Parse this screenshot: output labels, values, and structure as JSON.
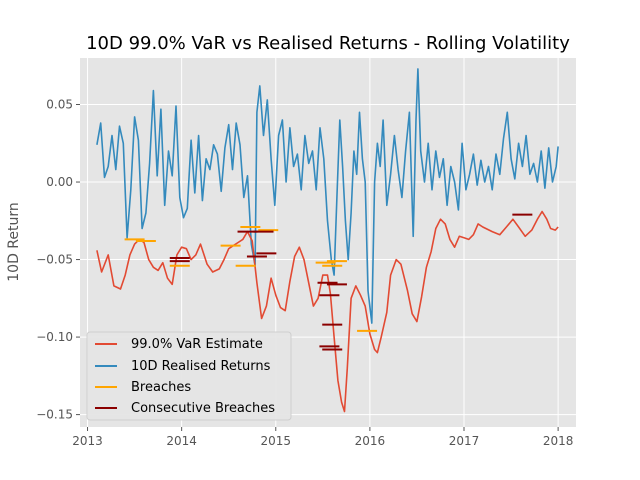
{
  "chart_data": {
    "type": "line",
    "title": "10D 99.0% VaR vs Realised Returns - Rolling Volatility",
    "xlabel": "",
    "ylabel": "10D Return",
    "xlim": [
      2012.92,
      2018.19
    ],
    "ylim": [
      -0.158,
      0.08
    ],
    "x_ticks": [
      2013,
      2014,
      2015,
      2016,
      2017,
      2018
    ],
    "x_tick_labels": [
      "2013",
      "2014",
      "2015",
      "2016",
      "2017",
      "2018"
    ],
    "y_ticks": [
      0.05,
      0.0,
      -0.05,
      -0.1,
      -0.15
    ],
    "y_tick_labels": [
      "0.05",
      "0.00",
      "−0.05",
      "−0.10",
      "−0.15"
    ],
    "grid": true,
    "legend_position": "lower-left",
    "colors": {
      "background": "#e5e5e5",
      "grid": "#ffffff",
      "var": "#e24a33",
      "returns": "#348abd",
      "breaches": "#ffa500",
      "consecutive": "#8b0000"
    },
    "series": [
      {
        "name": "99.0% VaR Estimate",
        "color": "#e24a33",
        "points": [
          [
            2013.1,
            -0.044
          ],
          [
            2013.15,
            -0.058
          ],
          [
            2013.22,
            -0.047
          ],
          [
            2013.28,
            -0.067
          ],
          [
            2013.35,
            -0.069
          ],
          [
            2013.4,
            -0.06
          ],
          [
            2013.45,
            -0.047
          ],
          [
            2013.5,
            -0.04
          ],
          [
            2013.55,
            -0.037
          ],
          [
            2013.6,
            -0.039
          ],
          [
            2013.65,
            -0.05
          ],
          [
            2013.7,
            -0.055
          ],
          [
            2013.75,
            -0.057
          ],
          [
            2013.8,
            -0.052
          ],
          [
            2013.85,
            -0.062
          ],
          [
            2013.9,
            -0.066
          ],
          [
            2013.95,
            -0.047
          ],
          [
            2014.0,
            -0.042
          ],
          [
            2014.05,
            -0.043
          ],
          [
            2014.1,
            -0.05
          ],
          [
            2014.15,
            -0.047
          ],
          [
            2014.2,
            -0.04
          ],
          [
            2014.27,
            -0.053
          ],
          [
            2014.33,
            -0.058
          ],
          [
            2014.4,
            -0.056
          ],
          [
            2014.45,
            -0.05
          ],
          [
            2014.5,
            -0.043
          ],
          [
            2014.55,
            -0.041
          ],
          [
            2014.6,
            -0.039
          ],
          [
            2014.65,
            -0.037
          ],
          [
            2014.7,
            -0.032
          ],
          [
            2014.75,
            -0.038
          ],
          [
            2014.8,
            -0.065
          ],
          [
            2014.85,
            -0.088
          ],
          [
            2014.9,
            -0.08
          ],
          [
            2014.95,
            -0.062
          ],
          [
            2015.0,
            -0.073
          ],
          [
            2015.05,
            -0.081
          ],
          [
            2015.1,
            -0.083
          ],
          [
            2015.15,
            -0.064
          ],
          [
            2015.2,
            -0.048
          ],
          [
            2015.25,
            -0.042
          ],
          [
            2015.3,
            -0.05
          ],
          [
            2015.35,
            -0.065
          ],
          [
            2015.4,
            -0.08
          ],
          [
            2015.45,
            -0.075
          ],
          [
            2015.5,
            -0.06
          ],
          [
            2015.55,
            -0.06
          ],
          [
            2015.58,
            -0.072
          ],
          [
            2015.62,
            -0.1
          ],
          [
            2015.66,
            -0.128
          ],
          [
            2015.7,
            -0.142
          ],
          [
            2015.73,
            -0.148
          ],
          [
            2015.76,
            -0.12
          ],
          [
            2015.8,
            -0.075
          ],
          [
            2015.85,
            -0.067
          ],
          [
            2015.9,
            -0.073
          ],
          [
            2015.95,
            -0.08
          ],
          [
            2016.0,
            -0.098
          ],
          [
            2016.05,
            -0.108
          ],
          [
            2016.08,
            -0.11
          ],
          [
            2016.12,
            -0.1
          ],
          [
            2016.18,
            -0.084
          ],
          [
            2016.22,
            -0.06
          ],
          [
            2016.28,
            -0.05
          ],
          [
            2016.33,
            -0.053
          ],
          [
            2016.4,
            -0.07
          ],
          [
            2016.45,
            -0.085
          ],
          [
            2016.5,
            -0.09
          ],
          [
            2016.55,
            -0.074
          ],
          [
            2016.6,
            -0.055
          ],
          [
            2016.65,
            -0.045
          ],
          [
            2016.7,
            -0.03
          ],
          [
            2016.75,
            -0.024
          ],
          [
            2016.8,
            -0.027
          ],
          [
            2016.85,
            -0.037
          ],
          [
            2016.9,
            -0.042
          ],
          [
            2016.95,
            -0.035
          ],
          [
            2017.0,
            -0.036
          ],
          [
            2017.05,
            -0.037
          ],
          [
            2017.1,
            -0.034
          ],
          [
            2017.15,
            -0.027
          ],
          [
            2017.2,
            -0.029
          ],
          [
            2017.3,
            -0.032
          ],
          [
            2017.38,
            -0.034
          ],
          [
            2017.45,
            -0.029
          ],
          [
            2017.52,
            -0.024
          ],
          [
            2017.58,
            -0.029
          ],
          [
            2017.65,
            -0.035
          ],
          [
            2017.72,
            -0.031
          ],
          [
            2017.78,
            -0.024
          ],
          [
            2017.83,
            -0.019
          ],
          [
            2017.88,
            -0.024
          ],
          [
            2017.92,
            -0.03
          ],
          [
            2017.97,
            -0.031
          ],
          [
            2018.0,
            -0.029
          ]
        ]
      },
      {
        "name": "10D Realised Returns",
        "color": "#348abd",
        "points": [
          [
            2013.1,
            0.024
          ],
          [
            2013.14,
            0.038
          ],
          [
            2013.18,
            0.003
          ],
          [
            2013.22,
            0.01
          ],
          [
            2013.26,
            0.03
          ],
          [
            2013.3,
            0.008
          ],
          [
            2013.34,
            0.036
          ],
          [
            2013.38,
            0.025
          ],
          [
            2013.42,
            -0.036
          ],
          [
            2013.46,
            -0.005
          ],
          [
            2013.5,
            0.042
          ],
          [
            2013.54,
            0.027
          ],
          [
            2013.58,
            -0.03
          ],
          [
            2013.62,
            -0.02
          ],
          [
            2013.66,
            0.012
          ],
          [
            2013.7,
            0.059
          ],
          [
            2013.74,
            0.004
          ],
          [
            2013.78,
            0.047
          ],
          [
            2013.82,
            -0.015
          ],
          [
            2013.86,
            0.02
          ],
          [
            2013.9,
            0.004
          ],
          [
            2013.94,
            0.049
          ],
          [
            2013.98,
            -0.01
          ],
          [
            2014.02,
            -0.023
          ],
          [
            2014.06,
            -0.017
          ],
          [
            2014.1,
            0.027
          ],
          [
            2014.14,
            -0.007
          ],
          [
            2014.18,
            0.03
          ],
          [
            2014.22,
            -0.012
          ],
          [
            2014.26,
            0.015
          ],
          [
            2014.3,
            0.008
          ],
          [
            2014.34,
            0.024
          ],
          [
            2014.38,
            0.018
          ],
          [
            2014.42,
            -0.006
          ],
          [
            2014.46,
            0.022
          ],
          [
            2014.5,
            0.037
          ],
          [
            2014.54,
            0.008
          ],
          [
            2014.58,
            0.038
          ],
          [
            2014.62,
            0.024
          ],
          [
            2014.66,
            -0.01
          ],
          [
            2014.7,
            0.004
          ],
          [
            2014.74,
            -0.04
          ],
          [
            2014.78,
            -0.054
          ],
          [
            2014.8,
            0.045
          ],
          [
            2014.83,
            0.062
          ],
          [
            2014.87,
            0.03
          ],
          [
            2014.91,
            0.053
          ],
          [
            2014.95,
            0.015
          ],
          [
            2014.99,
            -0.015
          ],
          [
            2015.03,
            0.03
          ],
          [
            2015.07,
            0.04
          ],
          [
            2015.11,
            0.0
          ],
          [
            2015.15,
            0.035
          ],
          [
            2015.19,
            0.01
          ],
          [
            2015.23,
            0.018
          ],
          [
            2015.27,
            -0.005
          ],
          [
            2015.31,
            0.03
          ],
          [
            2015.35,
            0.012
          ],
          [
            2015.39,
            0.02
          ],
          [
            2015.43,
            -0.005
          ],
          [
            2015.47,
            0.035
          ],
          [
            2015.51,
            0.015
          ],
          [
            2015.55,
            -0.025
          ],
          [
            2015.59,
            -0.05
          ],
          [
            2015.62,
            -0.06
          ],
          [
            2015.65,
            -0.01
          ],
          [
            2015.68,
            0.04
          ],
          [
            2015.71,
            0.01
          ],
          [
            2015.74,
            -0.025
          ],
          [
            2015.77,
            -0.05
          ],
          [
            2015.8,
            -0.02
          ],
          [
            2015.83,
            0.02
          ],
          [
            2015.86,
            0.005
          ],
          [
            2015.89,
            0.045
          ],
          [
            2015.92,
            0.015
          ],
          [
            2015.95,
            0.0
          ],
          [
            2015.98,
            -0.07
          ],
          [
            2016.02,
            -0.091
          ],
          [
            2016.05,
            0.0
          ],
          [
            2016.08,
            0.025
          ],
          [
            2016.11,
            0.01
          ],
          [
            2016.14,
            0.04
          ],
          [
            2016.18,
            -0.015
          ],
          [
            2016.22,
            0.005
          ],
          [
            2016.26,
            0.03
          ],
          [
            2016.3,
            0.008
          ],
          [
            2016.34,
            -0.01
          ],
          [
            2016.38,
            0.02
          ],
          [
            2016.42,
            0.045
          ],
          [
            2016.46,
            -0.035
          ],
          [
            2016.49,
            0.04
          ],
          [
            2016.51,
            0.073
          ],
          [
            2016.54,
            0.02
          ],
          [
            2016.58,
            0.0
          ],
          [
            2016.62,
            0.025
          ],
          [
            2016.66,
            -0.005
          ],
          [
            2016.7,
            0.02
          ],
          [
            2016.74,
            0.003
          ],
          [
            2016.78,
            0.015
          ],
          [
            2016.82,
            -0.015
          ],
          [
            2016.86,
            0.01
          ],
          [
            2016.9,
            0.0
          ],
          [
            2016.94,
            -0.018
          ],
          [
            2016.98,
            0.025
          ],
          [
            2017.02,
            -0.005
          ],
          [
            2017.06,
            0.005
          ],
          [
            2017.1,
            0.018
          ],
          [
            2017.14,
            -0.002
          ],
          [
            2017.18,
            0.014
          ],
          [
            2017.22,
            0.0
          ],
          [
            2017.26,
            0.01
          ],
          [
            2017.3,
            -0.005
          ],
          [
            2017.34,
            0.018
          ],
          [
            2017.38,
            0.005
          ],
          [
            2017.42,
            0.028
          ],
          [
            2017.46,
            0.045
          ],
          [
            2017.5,
            0.015
          ],
          [
            2017.54,
            0.002
          ],
          [
            2017.58,
            0.025
          ],
          [
            2017.62,
            0.01
          ],
          [
            2017.66,
            0.03
          ],
          [
            2017.7,
            0.005
          ],
          [
            2017.74,
            0.012
          ],
          [
            2017.78,
            0.0
          ],
          [
            2017.82,
            0.02
          ],
          [
            2017.86,
            -0.004
          ],
          [
            2017.9,
            0.022
          ],
          [
            2017.94,
            0.0
          ],
          [
            2017.98,
            0.01
          ],
          [
            2018.0,
            0.023
          ]
        ]
      }
    ],
    "breaches": {
      "name": "Breaches",
      "color": "#ffa500",
      "points": [
        [
          2013.5,
          -0.037
        ],
        [
          2013.62,
          -0.038
        ],
        [
          2013.98,
          -0.054
        ],
        [
          2014.52,
          -0.041
        ],
        [
          2014.68,
          -0.054
        ],
        [
          2014.73,
          -0.029
        ],
        [
          2014.92,
          -0.031
        ],
        [
          2015.53,
          -0.052
        ],
        [
          2015.6,
          -0.054
        ],
        [
          2015.65,
          -0.051
        ],
        [
          2015.97,
          -0.096
        ]
      ]
    },
    "consecutive_breaches": {
      "name": "Consecutive Breaches",
      "color": "#8b0000",
      "points": [
        [
          2013.98,
          -0.049
        ],
        [
          2013.98,
          -0.051
        ],
        [
          2014.7,
          -0.032
        ],
        [
          2014.8,
          -0.048
        ],
        [
          2014.87,
          -0.032
        ],
        [
          2014.9,
          -0.046
        ],
        [
          2015.55,
          -0.065
        ],
        [
          2015.57,
          -0.073
        ],
        [
          2015.6,
          -0.092
        ],
        [
          2015.57,
          -0.106
        ],
        [
          2015.6,
          -0.108
        ],
        [
          2015.65,
          -0.066
        ],
        [
          2017.62,
          -0.021
        ]
      ]
    }
  }
}
